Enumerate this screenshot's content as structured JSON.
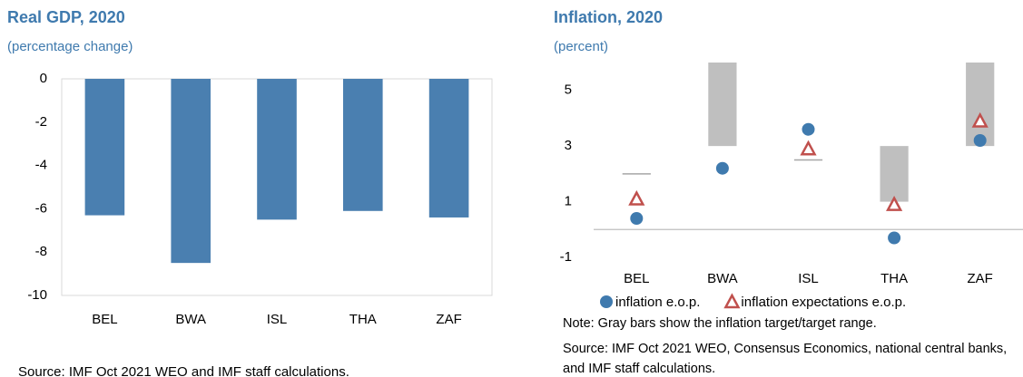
{
  "chart_data": [
    {
      "type": "bar",
      "title": "Real GDP, 2020",
      "subtitle": "(percentage change)",
      "categories": [
        "BEL",
        "BWA",
        "ISL",
        "THA",
        "ZAF"
      ],
      "values": [
        -6.3,
        -8.5,
        -6.5,
        -6.1,
        -6.4
      ],
      "color": "#4a7fb0",
      "ylim": [
        -10,
        0
      ],
      "yticks": [
        0,
        -2,
        -4,
        -6,
        -8,
        -10
      ],
      "grid": false,
      "source": "Source: IMF Oct 2021 WEO and IMF staff calculations."
    },
    {
      "type": "range_dot",
      "title": "Inflation, 2020",
      "subtitle": "(percent)",
      "categories": [
        "BEL",
        "BWA",
        "ISL",
        "THA",
        "ZAF"
      ],
      "target_low": [
        2,
        3,
        2.5,
        1,
        3
      ],
      "target_high": [
        2,
        6,
        2.5,
        3,
        6
      ],
      "target_color": "#bfbfbf",
      "series": [
        {
          "name": "inflation e.o.p.",
          "color": "#3f7aae",
          "marker": "circle",
          "values": [
            0.4,
            2.2,
            3.6,
            -0.3,
            3.2
          ]
        },
        {
          "name": "inflation expectations e.o.p.",
          "color": "#c0504d",
          "marker": "triangle",
          "values": [
            1.1,
            null,
            2.9,
            0.9,
            3.9
          ]
        }
      ],
      "ylim": [
        -1,
        6
      ],
      "yticks": [
        5,
        3,
        1,
        -1
      ],
      "grid": false,
      "note": "Note: Gray bars show the inflation target/target range.",
      "source": "Source: IMF Oct 2021 WEO, Consensus Economics, national central banks, and IMF staff calculations."
    }
  ]
}
